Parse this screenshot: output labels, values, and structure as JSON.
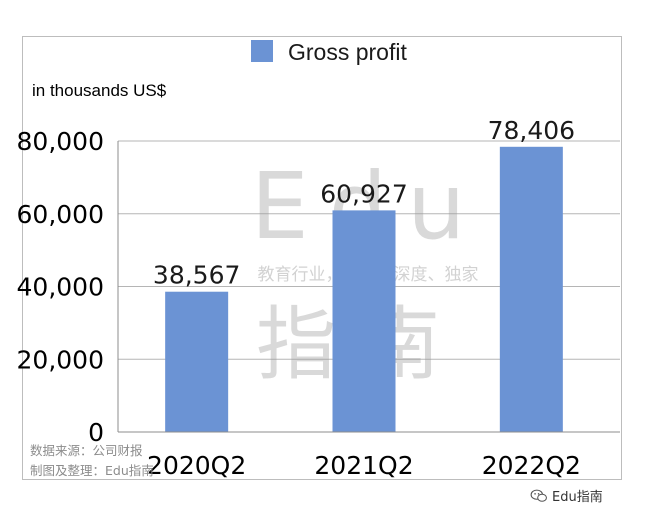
{
  "chart_data": {
    "type": "bar",
    "categories": [
      "2020Q2",
      "2021Q2",
      "2022Q2"
    ],
    "series": [
      {
        "name": "Gross profit",
        "values": [
          38567,
          60927,
          78406
        ]
      }
    ],
    "data_labels": [
      "38,567",
      "60,927",
      "78,406"
    ],
    "yticks": [
      "0",
      "20,000",
      "40,000",
      "60,000",
      "80,000"
    ],
    "ylim": [
      0,
      80000
    ],
    "unit_label": "in thousands US$",
    "legend_position": "top",
    "grid": true,
    "bar_color": "#6b93d4"
  },
  "watermark": {
    "big_latin": "Edu",
    "tagline": "教育行业，前沿、深度、独家",
    "big_cn": "指南"
  },
  "source_note": {
    "line1": "数据来源：公司财报",
    "line2": "制图及整理：Edu指南"
  },
  "footer": {
    "brand": "Edu指南",
    "icon": "wechat-icon"
  }
}
